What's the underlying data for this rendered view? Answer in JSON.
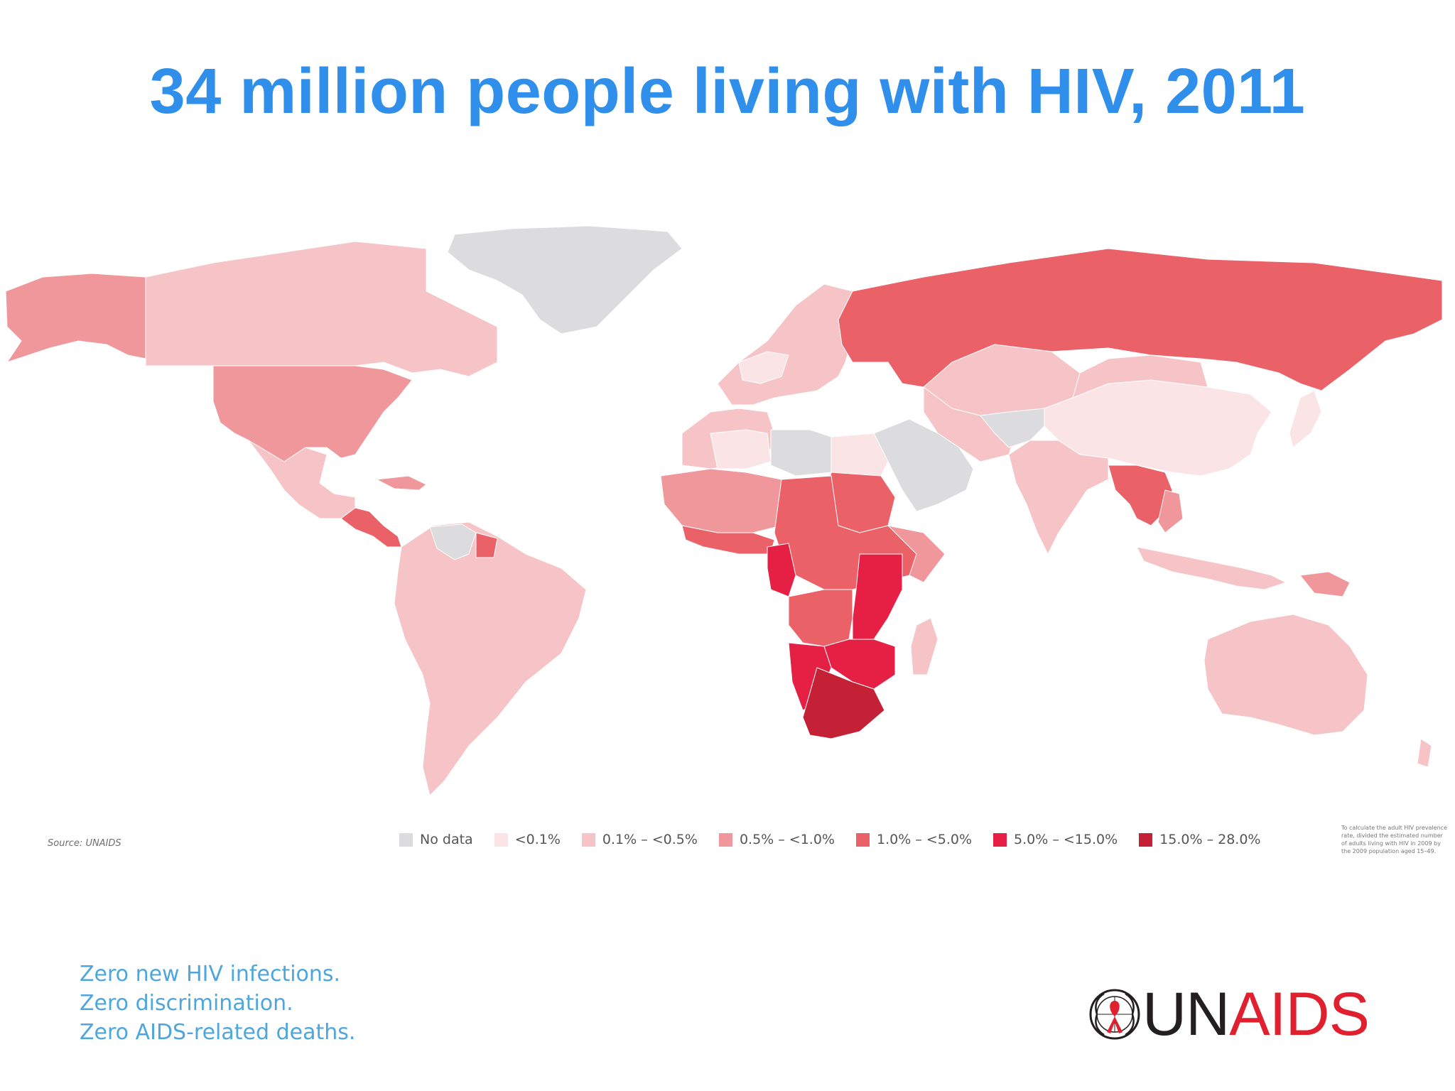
{
  "title": "34 million people living with HIV, 2011",
  "source": "Source: UNAIDS",
  "legend": [
    {
      "label": "No data",
      "color": "#dcdcdf"
    },
    {
      "label": "<0.1%",
      "color": "#fbe4e6"
    },
    {
      "label": "0.1% – <0.5%",
      "color": "#f6c4c6"
    },
    {
      "label": "0.5% – <1.0%",
      "color": "#f0979c"
    },
    {
      "label": "1.0% – <5.0%",
      "color": "#ea6168"
    },
    {
      "label": "5.0% – <15.0%",
      "color": "#e52044"
    },
    {
      "label": "15.0% – 28.0%",
      "color": "#c42036"
    }
  ],
  "footnote": "To calculate the adult HIV prevalence rate, divided the estimated number of adults living with HIV in 2009 by the 2009 population aged 15–49.",
  "tagline": [
    "Zero new HIV infections.",
    "Zero discrimination.",
    "Zero AIDS-related deaths."
  ],
  "logo": {
    "un": "UN",
    "aids": "AIDS",
    "emblem": "un-emblem-with-red-ribbon"
  }
}
